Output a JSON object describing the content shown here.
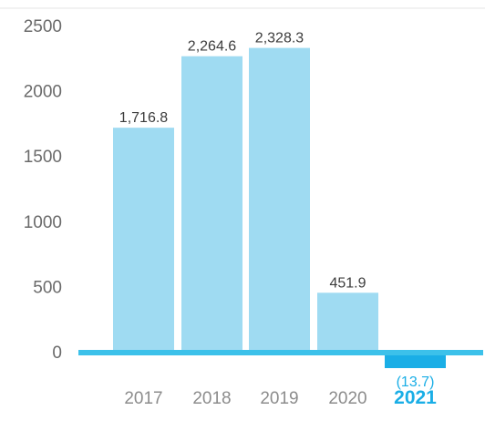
{
  "chart_data": {
    "type": "bar",
    "categories": [
      "2017",
      "2018",
      "2019",
      "2020",
      "2021"
    ],
    "values": [
      1716.8,
      2264.6,
      2328.3,
      451.9,
      -13.7
    ],
    "value_labels": [
      "1,716.8",
      "2,264.6",
      "2,328.3",
      "451.9",
      "(13.7)"
    ],
    "highlight_category": "2021",
    "yticks": [
      0,
      500,
      1000,
      1500,
      2000,
      2500
    ],
    "ylim": [
      0,
      2500
    ],
    "grid": false,
    "colors": {
      "bar": "#9fdbf2",
      "negative_bar": "#1aaee6",
      "baseline": "#3cc1ea",
      "highlight_label": "#1aaee6",
      "top_rule": "#e6e6e6"
    }
  }
}
